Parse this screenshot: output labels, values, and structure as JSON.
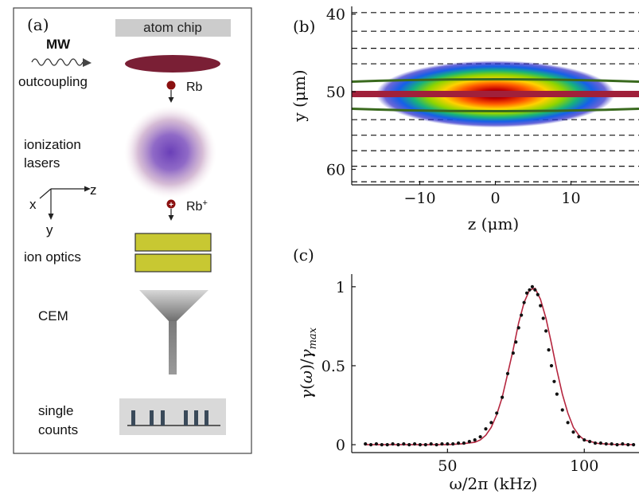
{
  "panel_a": {
    "label": "(a)",
    "atom_chip": "atom chip",
    "mw": "MW",
    "outcoupling": "outcoupling",
    "rb": "Rb",
    "rb_ion_base": "Rb",
    "rb_ion_sup": "+",
    "ionization_line1": "ionization",
    "ionization_line2": "lasers",
    "axis_x": "x",
    "axis_y": "y",
    "axis_z": "z",
    "ion_optics": "ion optics",
    "cem": "CEM",
    "single_line1": "single",
    "single_line2": "counts",
    "colors": {
      "cloud": "#7a1f35",
      "optics": "#c8c832",
      "chip": "#cccccc"
    }
  },
  "panel_b": {
    "label": "(b)",
    "xlabel": "z (μm)",
    "ylabel": "y (μm)",
    "xlim": [
      -19,
      19
    ],
    "ylim": [
      62,
      39
    ],
    "xticks": [
      -10,
      0,
      10
    ],
    "xtick_labels": [
      "−10",
      "0",
      "10"
    ],
    "yticks": [
      40,
      50,
      60
    ],
    "ytick_labels": [
      "40",
      "50",
      "60"
    ],
    "dashed_y": [
      39.8,
      42.2,
      44.4,
      46.4,
      53.6,
      55.6,
      57.6,
      59.6,
      61.6
    ],
    "green_upper_y": 48.7,
    "green_lower_y": 52.2,
    "red_center_y": 50.3
  },
  "chart_data": {
    "type": "scatter",
    "label": "(c)",
    "xlabel": "ω/2π (kHz)",
    "ylabel": "γ(ω)/γmax",
    "xlim": [
      15,
      120
    ],
    "ylim": [
      -0.05,
      1.08
    ],
    "xticks": [
      50,
      100
    ],
    "yticks": [
      0,
      0.5,
      1
    ],
    "ytick_labels": [
      "0",
      "0.5",
      "1"
    ],
    "series": [
      {
        "type": "scatter",
        "x": [
          20,
          22,
          24,
          26,
          28,
          30,
          32,
          34,
          36,
          38,
          40,
          42,
          44,
          46,
          48,
          50,
          52,
          54,
          56,
          58,
          60,
          62,
          64,
          66,
          68,
          70,
          72,
          74,
          75,
          76,
          77,
          78,
          79,
          80,
          81,
          82,
          83,
          84,
          85,
          86,
          87,
          88,
          89,
          90,
          92,
          94,
          96,
          98,
          100,
          102,
          104,
          106,
          108,
          110,
          112,
          114,
          116,
          118
        ],
        "y": [
          0.005,
          0,
          0.005,
          0,
          0,
          0.005,
          0,
          0.005,
          0,
          0.005,
          0,
          0,
          0.005,
          0,
          0.005,
          0.005,
          0.005,
          0.01,
          0.01,
          0.02,
          0.03,
          0.05,
          0.1,
          0.14,
          0.2,
          0.3,
          0.45,
          0.58,
          0.65,
          0.74,
          0.82,
          0.9,
          0.96,
          0.98,
          1.0,
          0.98,
          0.95,
          0.88,
          0.8,
          0.72,
          0.6,
          0.5,
          0.4,
          0.32,
          0.22,
          0.14,
          0.08,
          0.05,
          0.03,
          0.02,
          0.01,
          0.01,
          0.005,
          0.005,
          0,
          0.005,
          0,
          0
        ]
      },
      {
        "type": "line",
        "color": "#b5263f",
        "x": [
          20,
          30,
          40,
          50,
          55,
          60,
          62,
          64,
          66,
          68,
          70,
          72,
          74,
          76,
          78,
          80,
          82,
          84,
          86,
          88,
          90,
          92,
          94,
          96,
          98,
          100,
          105,
          110,
          118
        ],
        "y": [
          0,
          0,
          0,
          0,
          0.005,
          0.015,
          0.03,
          0.06,
          0.11,
          0.19,
          0.3,
          0.45,
          0.6,
          0.77,
          0.9,
          0.98,
          0.99,
          0.92,
          0.8,
          0.64,
          0.47,
          0.32,
          0.2,
          0.11,
          0.06,
          0.03,
          0.008,
          0.002,
          0
        ]
      }
    ]
  }
}
